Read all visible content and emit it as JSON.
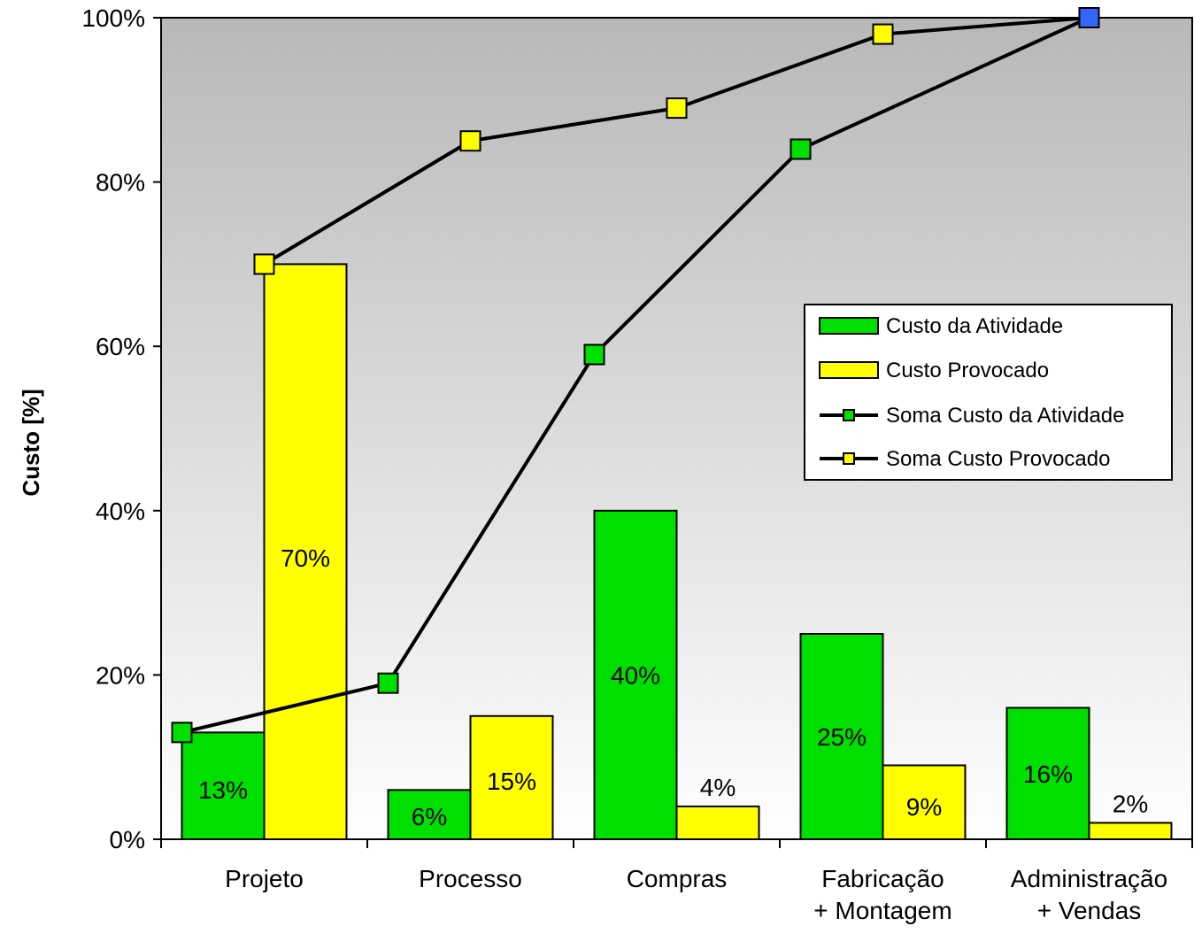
{
  "colors": {
    "bar_activity": "#00e000",
    "bar_provoked": "#ffff00",
    "line": "#000000",
    "marker_final": "#3366ff",
    "plot_bg_top": "#b8b8b8",
    "plot_bg_bottom": "#ffffff"
  },
  "chart_data": {
    "type": "bar",
    "title": "",
    "xlabel": "",
    "ylabel": "Custo [%]",
    "ylim": [
      0,
      100
    ],
    "yticks": [
      "0%",
      "20%",
      "40%",
      "60%",
      "80%",
      "100%"
    ],
    "grid": false,
    "legend_position": "right",
    "categories": [
      [
        "Projeto"
      ],
      [
        "Processo"
      ],
      [
        "Compras"
      ],
      [
        "Fabricação",
        "+ Montagem"
      ],
      [
        "Administração",
        "+ Vendas"
      ]
    ],
    "series": [
      {
        "name": "Custo da Atividade",
        "kind": "bar",
        "color": "#00e000",
        "values": [
          13,
          6,
          40,
          25,
          16
        ],
        "labels": [
          "13%",
          "6%",
          "40%",
          "25%",
          "16%"
        ]
      },
      {
        "name": "Custo Provocado",
        "kind": "bar",
        "color": "#ffff00",
        "values": [
          70,
          15,
          4,
          9,
          2
        ],
        "labels": [
          "70%",
          "15%",
          "4%",
          "9%",
          "2%"
        ]
      },
      {
        "name": "Soma Custo da Atividade",
        "kind": "line",
        "color": "#00e000",
        "values": [
          13,
          19,
          59,
          84,
          100
        ]
      },
      {
        "name": "Soma Custo Provocado",
        "kind": "line",
        "color": "#ffff00",
        "values": [
          70,
          85,
          89,
          98,
          100
        ]
      }
    ]
  }
}
